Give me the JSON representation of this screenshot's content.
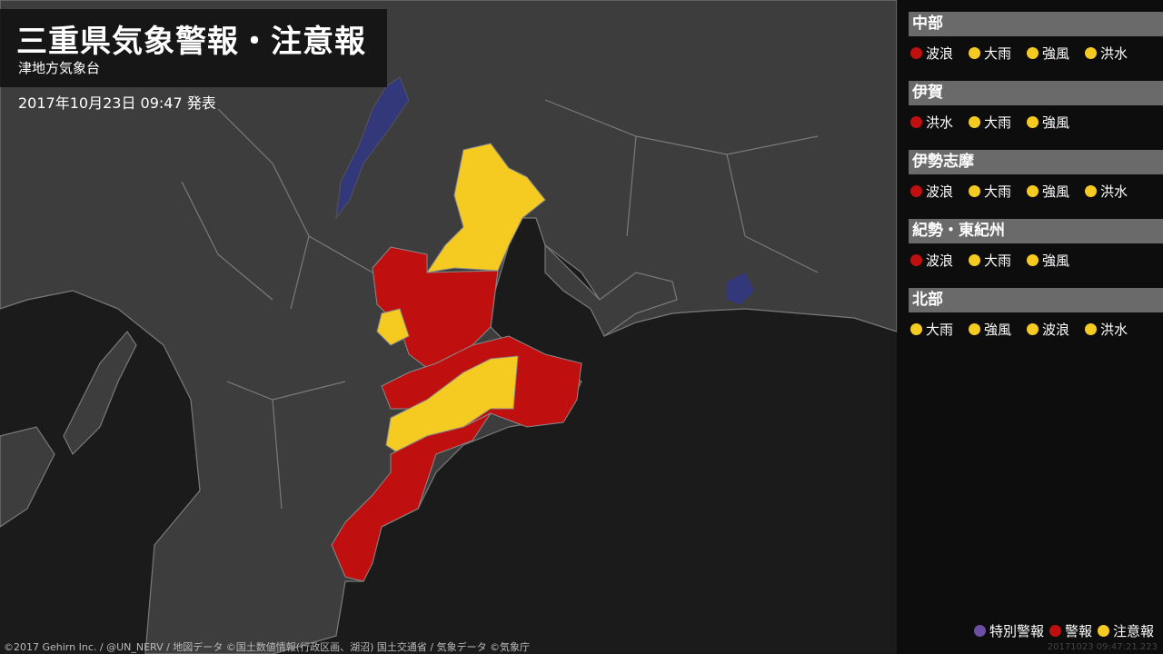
{
  "header": {
    "title": "三重県気象警報・注意報",
    "office": "津地方気象台",
    "issued": "2017年10月23日 09:47 発表"
  },
  "colors": {
    "special": "#6b4fa0",
    "warning": "#c00f0f",
    "advisory": "#f5cb22",
    "land": "#3d3d3d",
    "sea": "#1b1b1b",
    "lake": "#33387a"
  },
  "areas": [
    {
      "name": "中部",
      "items": [
        {
          "label": "波浪",
          "level": "warning"
        },
        {
          "label": "大雨",
          "level": "advisory"
        },
        {
          "label": "強風",
          "level": "advisory"
        },
        {
          "label": "洪水",
          "level": "advisory"
        }
      ]
    },
    {
      "name": "伊賀",
      "items": [
        {
          "label": "洪水",
          "level": "warning"
        },
        {
          "label": "大雨",
          "level": "advisory"
        },
        {
          "label": "強風",
          "level": "advisory"
        }
      ]
    },
    {
      "name": "伊勢志摩",
      "items": [
        {
          "label": "波浪",
          "level": "warning"
        },
        {
          "label": "大雨",
          "level": "advisory"
        },
        {
          "label": "強風",
          "level": "advisory"
        },
        {
          "label": "洪水",
          "level": "advisory"
        }
      ]
    },
    {
      "name": "紀勢・東紀州",
      "items": [
        {
          "label": "波浪",
          "level": "warning"
        },
        {
          "label": "大雨",
          "level": "advisory"
        },
        {
          "label": "強風",
          "level": "advisory"
        }
      ]
    },
    {
      "name": "北部",
      "items": [
        {
          "label": "大雨",
          "level": "advisory"
        },
        {
          "label": "強風",
          "level": "advisory"
        },
        {
          "label": "波浪",
          "level": "advisory"
        },
        {
          "label": "洪水",
          "level": "advisory"
        }
      ]
    }
  ],
  "legend": [
    {
      "label": "特別警報",
      "level": "special"
    },
    {
      "label": "警報",
      "level": "warning"
    },
    {
      "label": "注意報",
      "level": "advisory"
    }
  ],
  "credit": "©2017 Gehirn Inc. / @UN_NERV / 地図データ ©国土数値情報(行政区画、湖沼) 国土交通省 / 気象データ ©気象庁",
  "timestamp": "20171023 09:47:21.223"
}
